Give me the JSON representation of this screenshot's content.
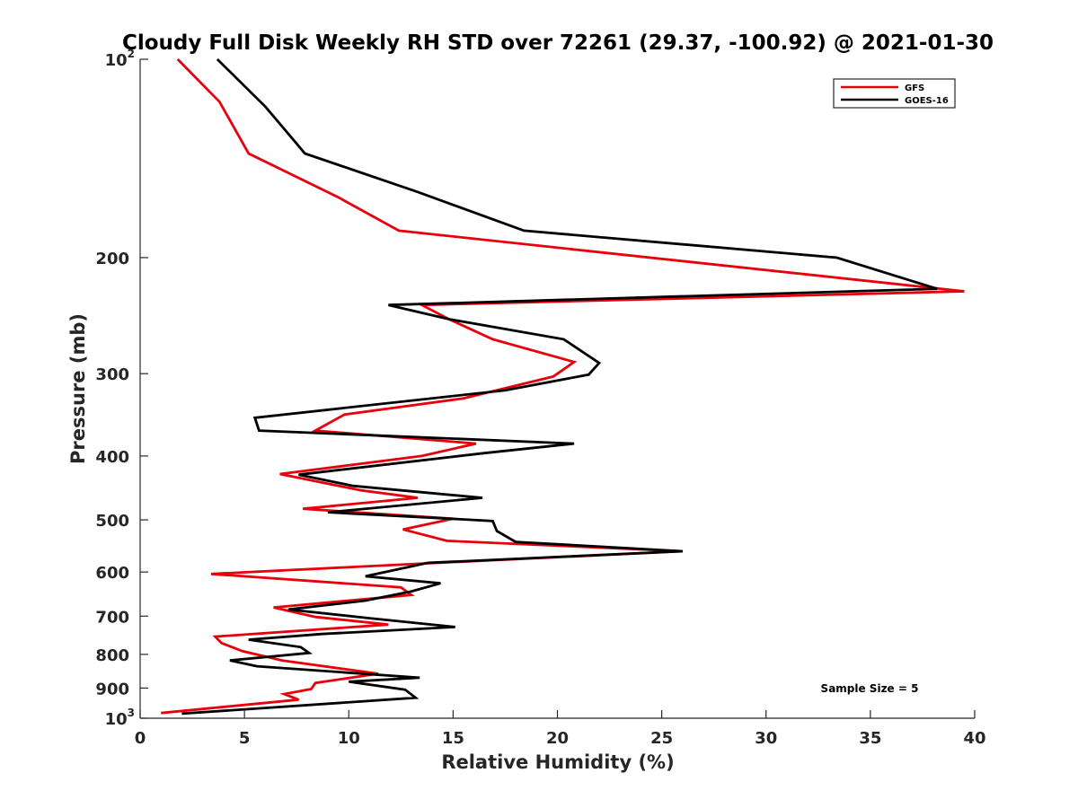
{
  "chart_data": {
    "type": "line",
    "title": "Cloudy Full Disk Weekly RH STD over 72261 (29.37, -100.92) @ 2021-01-30",
    "xlabel": "Relative Humidity (%)",
    "ylabel": "Pressure (mb)",
    "xlim": [
      0,
      40
    ],
    "ylim": [
      100,
      1000
    ],
    "yscale": "log",
    "y_reversed": true,
    "x_ticks": [
      0,
      5,
      10,
      15,
      20,
      25,
      30,
      35,
      40
    ],
    "y_ticks": [
      {
        "value": 100,
        "label": "10",
        "sup": "2"
      },
      {
        "value": 200,
        "label": "200"
      },
      {
        "value": 300,
        "label": "300"
      },
      {
        "value": 400,
        "label": "400"
      },
      {
        "value": 500,
        "label": "500"
      },
      {
        "value": 600,
        "label": "600"
      },
      {
        "value": 700,
        "label": "700"
      },
      {
        "value": 800,
        "label": "800"
      },
      {
        "value": 900,
        "label": "900"
      },
      {
        "value": 1000,
        "label": "10",
        "sup": "3"
      }
    ],
    "grid": false,
    "legend_position": "top-right",
    "annotation": "Sample Size = 5",
    "series": [
      {
        "name": "GFS",
        "color": "#e8000b",
        "points": [
          [
            1.8,
            100
          ],
          [
            3.8,
            116
          ],
          [
            5.2,
            139
          ],
          [
            9.5,
            162
          ],
          [
            12.4,
            182
          ],
          [
            39.5,
            225
          ],
          [
            13.5,
            236
          ],
          [
            14.8,
            248
          ],
          [
            16.9,
            266
          ],
          [
            20.8,
            288
          ],
          [
            19.8,
            303
          ],
          [
            15.5,
            327
          ],
          [
            9.8,
            346
          ],
          [
            8.4,
            366
          ],
          [
            16.1,
            383
          ],
          [
            13.5,
            400
          ],
          [
            6.7,
            426
          ],
          [
            10.6,
            451
          ],
          [
            13.3,
            463
          ],
          [
            7.8,
            481
          ],
          [
            15.0,
            498
          ],
          [
            12.6,
            517
          ],
          [
            14.7,
            538
          ],
          [
            26.0,
            558
          ],
          [
            13.3,
            583
          ],
          [
            3.4,
            604
          ],
          [
            12.5,
            633
          ],
          [
            13.0,
            650
          ],
          [
            6.4,
            679
          ],
          [
            8.4,
            702
          ],
          [
            11.9,
            721
          ],
          [
            3.6,
            752
          ],
          [
            3.9,
            769
          ],
          [
            4.9,
            791
          ],
          [
            6.8,
            817
          ],
          [
            11.4,
            856
          ],
          [
            8.4,
            884
          ],
          [
            8.2,
            903
          ],
          [
            6.9,
            919
          ],
          [
            7.6,
            937
          ],
          [
            1.0,
            982
          ]
        ]
      },
      {
        "name": "GOES-16",
        "color": "#000000",
        "points": [
          [
            3.7,
            100
          ],
          [
            6.0,
            118
          ],
          [
            7.9,
            139
          ],
          [
            13.3,
            159
          ],
          [
            18.4,
            182
          ],
          [
            33.4,
            200
          ],
          [
            38.2,
            223
          ],
          [
            11.9,
            236
          ],
          [
            14.8,
            248
          ],
          [
            20.3,
            266
          ],
          [
            22.0,
            289
          ],
          [
            21.5,
            301
          ],
          [
            17.5,
            318
          ],
          [
            5.5,
            350
          ],
          [
            5.7,
            366
          ],
          [
            20.8,
            383
          ],
          [
            16.5,
            396
          ],
          [
            7.6,
            427
          ],
          [
            10.2,
            444
          ],
          [
            16.4,
            463
          ],
          [
            9.0,
            487
          ],
          [
            16.9,
            502
          ],
          [
            17.1,
            520
          ],
          [
            18.0,
            540
          ],
          [
            26.0,
            558
          ],
          [
            13.8,
            581
          ],
          [
            10.8,
            609
          ],
          [
            14.4,
            624
          ],
          [
            13.0,
            642
          ],
          [
            10.8,
            663
          ],
          [
            7.1,
            684
          ],
          [
            11.0,
            705
          ],
          [
            15.1,
            727
          ],
          [
            8.7,
            745
          ],
          [
            5.2,
            760
          ],
          [
            7.7,
            780
          ],
          [
            8.1,
            796
          ],
          [
            4.3,
            817
          ],
          [
            5.6,
            834
          ],
          [
            13.4,
            868
          ],
          [
            10.0,
            880
          ],
          [
            12.7,
            905
          ],
          [
            13.2,
            931
          ],
          [
            2.0,
            984
          ]
        ]
      }
    ]
  }
}
